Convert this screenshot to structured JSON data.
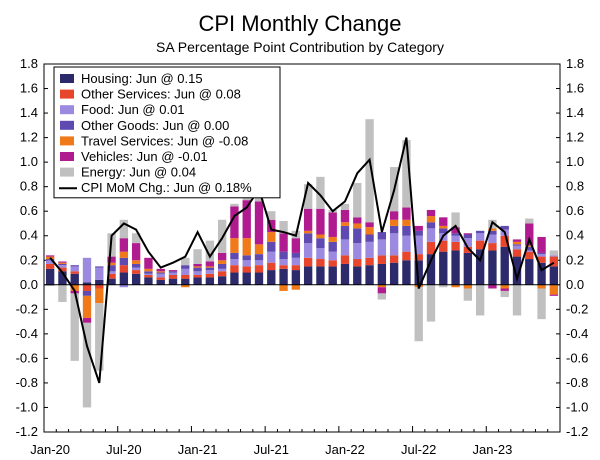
{
  "chart_data": {
    "type": "bar",
    "stacked": true,
    "title": "CPI Monthly Change",
    "subtitle": "SA Percentage Point Contribution by Category",
    "ylim": [
      -1.2,
      1.8
    ],
    "yticks": [
      -1.2,
      -1.0,
      -0.8,
      -0.6,
      -0.4,
      -0.2,
      0.0,
      0.2,
      0.4,
      0.6,
      0.8,
      1.0,
      1.2,
      1.4,
      1.6,
      1.8
    ],
    "ytick_labels": [
      "-1.2",
      "-1.0",
      "-0.8",
      "-0.6",
      "-0.4",
      "-0.2",
      "0.0",
      "0.2",
      "0.4",
      "0.6",
      "0.8",
      "1.0",
      "1.2",
      "1.4",
      "1.6",
      "1.8"
    ],
    "x": [
      "Jan-20",
      "Feb-20",
      "Mar-20",
      "Apr-20",
      "May-20",
      "Jun-20",
      "Jul-20",
      "Aug-20",
      "Sep-20",
      "Oct-20",
      "Nov-20",
      "Dec-20",
      "Jan-21",
      "Feb-21",
      "Mar-21",
      "Apr-21",
      "May-21",
      "Jun-21",
      "Jul-21",
      "Aug-21",
      "Sep-21",
      "Oct-21",
      "Nov-21",
      "Dec-21",
      "Jan-22",
      "Feb-22",
      "Mar-22",
      "Apr-22",
      "May-22",
      "Jun-22",
      "Jul-22",
      "Aug-22",
      "Sep-22",
      "Oct-22",
      "Nov-22",
      "Dec-22",
      "Jan-23",
      "Feb-23",
      "Mar-23",
      "Apr-23",
      "May-23",
      "Jun-23"
    ],
    "xtick_labels": [
      {
        "index": 0,
        "label": "Jan-20"
      },
      {
        "index": 6,
        "label": "Jul-20"
      },
      {
        "index": 12,
        "label": "Jan-21"
      },
      {
        "index": 18,
        "label": "Jul-21"
      },
      {
        "index": 24,
        "label": "Jan-22"
      },
      {
        "index": 30,
        "label": "Jul-22"
      },
      {
        "index": 36,
        "label": "Jan-23"
      }
    ],
    "legend_position": "top-left",
    "series": [
      {
        "name": "Housing: Jun @ 0.15",
        "color": "#2d2a6b",
        "kind": "bar",
        "values": [
          0.13,
          0.11,
          0.09,
          0.02,
          0.04,
          0.05,
          0.1,
          0.09,
          0.06,
          0.04,
          0.05,
          0.05,
          0.06,
          0.06,
          0.07,
          0.1,
          0.1,
          0.1,
          0.12,
          0.13,
          0.12,
          0.15,
          0.15,
          0.15,
          0.17,
          0.15,
          0.16,
          0.17,
          0.18,
          0.2,
          0.2,
          0.25,
          0.27,
          0.28,
          0.26,
          0.29,
          0.28,
          0.31,
          0.23,
          0.21,
          0.18,
          0.15
        ]
      },
      {
        "name": "Other Services: Jun @ 0.08",
        "color": "#e8452d",
        "kind": "bar",
        "values": [
          0.04,
          0.03,
          0.02,
          -0.05,
          -0.03,
          0.04,
          0.06,
          0.03,
          0.02,
          0.02,
          0.03,
          0.03,
          0.02,
          0.03,
          0.04,
          0.06,
          0.05,
          0.06,
          0.06,
          0.03,
          0.04,
          0.07,
          0.06,
          0.05,
          0.07,
          0.06,
          0.06,
          0.07,
          0.06,
          0.07,
          0.05,
          0.1,
          0.09,
          0.07,
          0.05,
          0.07,
          0.06,
          0.09,
          0.06,
          0.06,
          0.05,
          0.08
        ]
      },
      {
        "name": "Food: Jun @ 0.01",
        "color": "#9b8ae0",
        "kind": "bar",
        "values": [
          0.03,
          0.02,
          0.04,
          0.2,
          0.1,
          0.02,
          -0.02,
          0.02,
          0.01,
          0.03,
          0.02,
          0.05,
          0.03,
          0.03,
          0.02,
          0.05,
          0.05,
          0.04,
          0.09,
          0.05,
          0.06,
          0.12,
          0.09,
          0.07,
          0.13,
          0.13,
          0.13,
          0.13,
          0.18,
          0.13,
          0.15,
          0.11,
          0.06,
          0.05,
          0.07,
          0.06,
          0.07,
          0.05,
          0.03,
          0.01,
          0.02,
          0.01
        ]
      },
      {
        "name": "Other Goods: Jun @ 0.00",
        "color": "#5e4ab0",
        "kind": "bar",
        "values": [
          0.01,
          0.01,
          0.01,
          -0.04,
          0.01,
          0.05,
          0.06,
          0.03,
          0.02,
          0.01,
          0.01,
          0.03,
          0.03,
          0.02,
          0.04,
          0.05,
          0.04,
          0.05,
          0.08,
          0.06,
          0.04,
          0.08,
          0.08,
          0.08,
          0.11,
          0.12,
          0.06,
          0.06,
          0.06,
          0.08,
          0.04,
          0.05,
          0.04,
          0.02,
          0.03,
          0.02,
          0.03,
          0.03,
          0.01,
          0.03,
          0.01,
          0.0
        ]
      },
      {
        "name": "Travel Services: Jun @ -0.08",
        "color": "#f07a1a",
        "kind": "bar",
        "values": [
          0.02,
          0.01,
          -0.05,
          -0.18,
          -0.12,
          0.02,
          0.05,
          0.03,
          0.02,
          0.01,
          0.0,
          -0.02,
          0.01,
          0.01,
          0.03,
          0.12,
          0.14,
          0.08,
          0.08,
          -0.05,
          -0.04,
          0.02,
          0.03,
          0.04,
          0.03,
          0.04,
          0.06,
          -0.02,
          0.05,
          0.05,
          -0.02,
          0.05,
          0.02,
          -0.02,
          -0.03,
          0.0,
          0.02,
          -0.03,
          0.02,
          0.01,
          -0.03,
          -0.08
        ]
      },
      {
        "name": "Vehicles: Jun @ -0.01",
        "color": "#b01c8f",
        "kind": "bar",
        "values": [
          0.01,
          0.01,
          -0.02,
          -0.04,
          0.0,
          0.05,
          0.11,
          0.14,
          0.09,
          0.02,
          0.01,
          0.0,
          0.02,
          0.04,
          0.06,
          0.26,
          0.31,
          0.35,
          0.1,
          0.15,
          0.12,
          0.18,
          0.21,
          0.2,
          0.1,
          0.05,
          0.04,
          -0.05,
          0.07,
          0.1,
          0.04,
          0.05,
          0.07,
          0.05,
          0.01,
          0.0,
          -0.03,
          -0.02,
          0.02,
          0.18,
          0.13,
          -0.01
        ]
      },
      {
        "name": "Energy: Jun @ 0.04",
        "color": "#c0c0c0",
        "kind": "bar",
        "values": [
          -0.01,
          -0.14,
          -0.55,
          -0.69,
          -0.55,
          0.19,
          0.15,
          0.08,
          0.0,
          0.0,
          0.0,
          0.06,
          0.12,
          0.17,
          0.27,
          0.02,
          0.06,
          0.06,
          0.07,
          0.1,
          0.06,
          0.2,
          0.26,
          0.02,
          0.05,
          0.28,
          0.84,
          -0.05,
          0.36,
          0.55,
          -0.44,
          -0.3,
          -0.02,
          0.12,
          -0.1,
          -0.25,
          0.07,
          -0.05,
          -0.25,
          0.04,
          -0.25,
          0.04
        ]
      },
      {
        "name": "CPI MoM Chg.: Jun @ 0.18%",
        "color": "#000000",
        "kind": "line",
        "values": [
          0.22,
          0.1,
          -0.05,
          -0.5,
          -0.8,
          0.4,
          0.5,
          0.45,
          0.27,
          0.14,
          0.18,
          0.23,
          0.43,
          0.23,
          0.38,
          0.56,
          0.63,
          0.78,
          0.45,
          0.43,
          0.4,
          0.83,
          0.73,
          0.6,
          0.68,
          0.91,
          1.02,
          0.43,
          0.77,
          1.2,
          -0.03,
          0.2,
          0.4,
          0.48,
          0.3,
          0.2,
          0.51,
          0.43,
          0.05,
          0.37,
          0.12,
          0.18
        ]
      }
    ]
  }
}
